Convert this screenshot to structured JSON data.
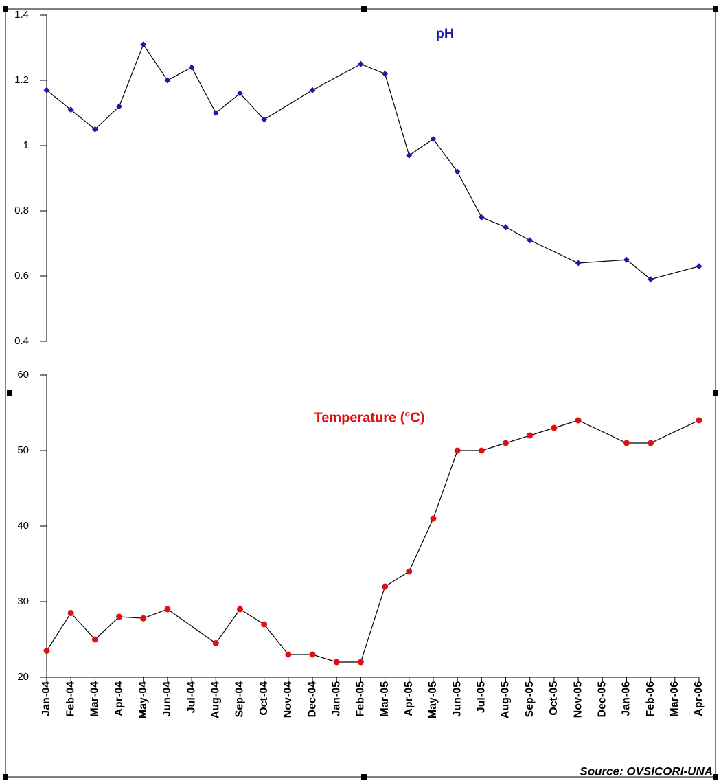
{
  "chart_data": [
    {
      "type": "line",
      "title": "pH",
      "color": "#1a1aa6",
      "x": [
        "Jan-04",
        "Feb-04",
        "Mar-04",
        "Apr-04",
        "May-04",
        "Jun-04",
        "Jul-04",
        "Aug-04",
        "Sep-04",
        "Oct-04",
        "Dec-04",
        "Feb-05",
        "Mar-05",
        "Apr-05",
        "May-05",
        "Jun-05",
        "Jul-05",
        "Aug-05",
        "Sep-05",
        "Nov-05",
        "Jan-06",
        "Feb-06",
        "Apr-06"
      ],
      "values": [
        1.17,
        1.11,
        1.05,
        1.12,
        1.31,
        1.2,
        1.24,
        1.1,
        1.16,
        1.08,
        1.17,
        1.25,
        1.22,
        0.97,
        1.02,
        0.92,
        0.78,
        0.75,
        0.71,
        0.64,
        0.65,
        0.59,
        0.63
      ],
      "ylim": [
        0.4,
        1.4
      ],
      "yticks": [
        1.4,
        1.2,
        1,
        0.8,
        0.6,
        0.4
      ]
    },
    {
      "type": "line",
      "title": "Temperature (°C)",
      "color": "#e01010",
      "categories": [
        "Jan-04",
        "Feb-04",
        "Mar-04",
        "Apr-04",
        "May-04",
        "Jun-04",
        "Jul-04",
        "Aug-04",
        "Sep-04",
        "Oct-04",
        "Nov-04",
        "Dec-04",
        "Jan-05",
        "Feb-05",
        "Mar-05",
        "Apr-05",
        "May-05",
        "Jun-05",
        "Jul-05",
        "Aug-05",
        "Sep-05",
        "Oct-05",
        "Nov-05",
        "Dec-05",
        "Jan-06",
        "Feb-06",
        "Mar-06",
        "Apr-06"
      ],
      "x": [
        "Jan-04",
        "Feb-04",
        "Mar-04",
        "Apr-04",
        "May-04",
        "Jun-04",
        "Aug-04",
        "Sep-04",
        "Oct-04",
        "Nov-04",
        "Dec-04",
        "Jan-05",
        "Feb-05",
        "Mar-05",
        "Apr-05",
        "May-05",
        "Jun-05",
        "Jul-05",
        "Aug-05",
        "Sep-05",
        "Oct-05",
        "Nov-05",
        "Jan-06",
        "Feb-06",
        "Apr-06"
      ],
      "values": [
        23.5,
        28.5,
        25,
        28,
        27.8,
        29,
        24.5,
        29,
        27,
        23,
        23,
        22,
        22,
        32,
        34,
        41,
        50,
        50,
        51,
        52,
        53,
        54,
        51,
        51,
        54
      ],
      "ylim": [
        20,
        60
      ],
      "yticks": [
        60,
        50,
        40,
        30,
        20
      ],
      "source": "Source:  OVSICORI-UNA"
    }
  ]
}
